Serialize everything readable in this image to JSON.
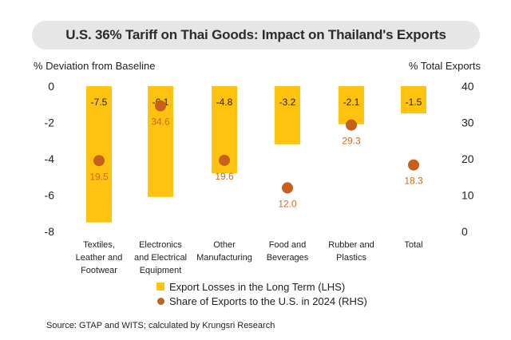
{
  "title": "U.S. 36% Tariff on Thai Goods: Impact on Thailand's Exports",
  "source": "Source: GTAP and WITS; calculated by Krungsri Research",
  "colors": {
    "bar": "#FFC20E",
    "dot": "#C8601C",
    "value_label": "#D2691E",
    "text": "#222222",
    "title_bg": "#E6E6E6"
  },
  "chart_data": {
    "type": "bar",
    "title": "U.S. 36% Tariff on Thai Goods: Impact on Thailand's Exports",
    "ylabel": "% Deviation from Baseline",
    "y2label": "% Total Exports",
    "ylim": [
      -8,
      0
    ],
    "y2lim": [
      0,
      40
    ],
    "yticks": [
      "0",
      "-2",
      "-4",
      "-6",
      "-8"
    ],
    "y2ticks": [
      "40",
      "30",
      "20",
      "10",
      "0"
    ],
    "categories": [
      [
        "Textiles,",
        "Leather and",
        "Footwear"
      ],
      [
        "Electronics",
        "and Electrical",
        "Equipment"
      ],
      [
        "Other",
        "Manufacturing"
      ],
      [
        "Food and",
        "Beverages"
      ],
      [
        "Rubber and",
        "Plastics"
      ],
      [
        "Total"
      ]
    ],
    "series": [
      {
        "name": "Export Losses in the Long Term (LHS)",
        "type": "bar",
        "axis": "left",
        "values": [
          -7.5,
          -6.1,
          -4.8,
          -3.2,
          -2.1,
          -1.5
        ],
        "labels": [
          "-7.5",
          "-6.1",
          "-4.8",
          "-3.2",
          "-2.1",
          "-1.5"
        ]
      },
      {
        "name": "Share of Exports to the U.S. in 2024 (RHS)",
        "type": "scatter",
        "axis": "right",
        "values": [
          19.5,
          34.6,
          19.6,
          12.0,
          29.3,
          18.3
        ],
        "labels": [
          "19.5",
          "34.6",
          "19.6",
          "12.0",
          "29.3",
          "18.3"
        ]
      }
    ],
    "legend": "bottom-center",
    "grid": false
  }
}
